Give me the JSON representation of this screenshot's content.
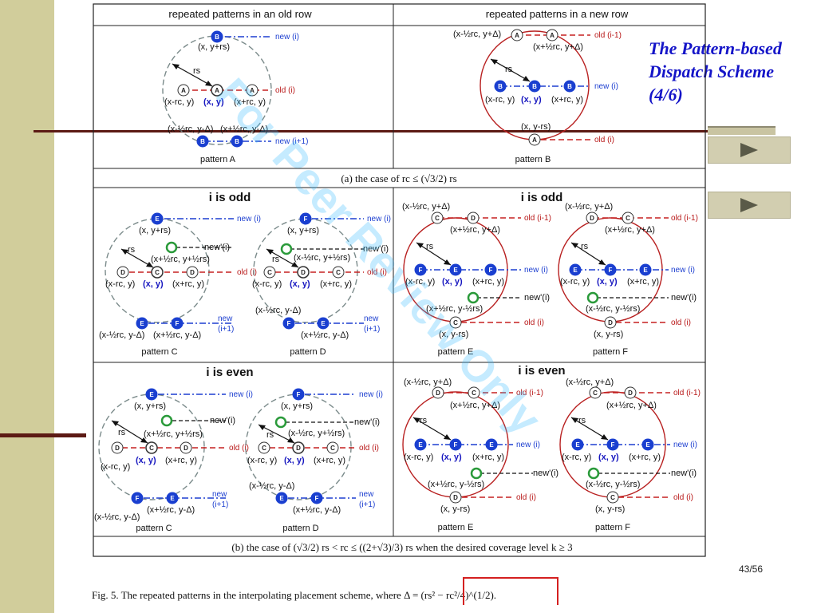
{
  "slide": {
    "title_lines": [
      "The Pattern-based",
      "Dispatch Scheme",
      "(4/6)"
    ],
    "page_number": "43/56",
    "nav": [
      {
        "icon": "play-arrow-icon"
      },
      {
        "icon": "play-arrow-icon"
      }
    ]
  },
  "figure": {
    "headers": {
      "old_row": "repeated patterns in an old row",
      "new_row": "repeated patterns in a new row"
    },
    "section_a_caption": "(a) the case of rc ≤ (√3/2) rs",
    "section_b_caption": "(b) the case of (√3/2) rs < rc ≤ ((2+√3)/3) rs when the desired coverage level k ≥ 3",
    "odd_label": "i is odd",
    "even_label": "i is even",
    "caption": "Fig. 5.   The repeated patterns in the interpolating placement scheme, where Δ = (rs² − rc²/4)^(1/2).",
    "watermark": "For Peer Review Only",
    "patterns": {
      "A": "pattern A",
      "B": "pattern B",
      "C": "pattern C",
      "D": "pattern D",
      "E": "pattern E",
      "F": "pattern F"
    },
    "row_labels": {
      "new_i": "new (i)",
      "old_i": "old (i)",
      "old_im1": "old (i-1)",
      "new_ip1": "new (i+1)",
      "newp_i": "new'(i)",
      "new": "new",
      "ip1": "(i+1)"
    },
    "coords": {
      "x_y": "(x, y)",
      "x_yrs": "(x, y+rs)",
      "x_y_minus_rs": "(x, y-rs)",
      "xm_rc_y": "(x-rc, y)",
      "xp_rc_y": "(x+rc, y)",
      "xm_half_rc_yd": "(x-½rc, y+Δ)",
      "xp_half_rc_yd": "(x+½rc, y+Δ)",
      "xm_half_rc_ymd": "(x-½rc, y-Δ)",
      "xp_half_rc_ymd": "(x+½rc, y-Δ)",
      "xp_half_rc_yp_half_rs": "(x+½rc, y+½rs)",
      "xm_half_rc_yp_half_rs": "(x-½rc, y+½rs)",
      "xp_half_rc_ym_half_rs": "(x+½rc, y-½rs)",
      "xm_half_rc_ym_half_rs": "(x-½rc, y-½rs)",
      "rs": "rs"
    }
  }
}
